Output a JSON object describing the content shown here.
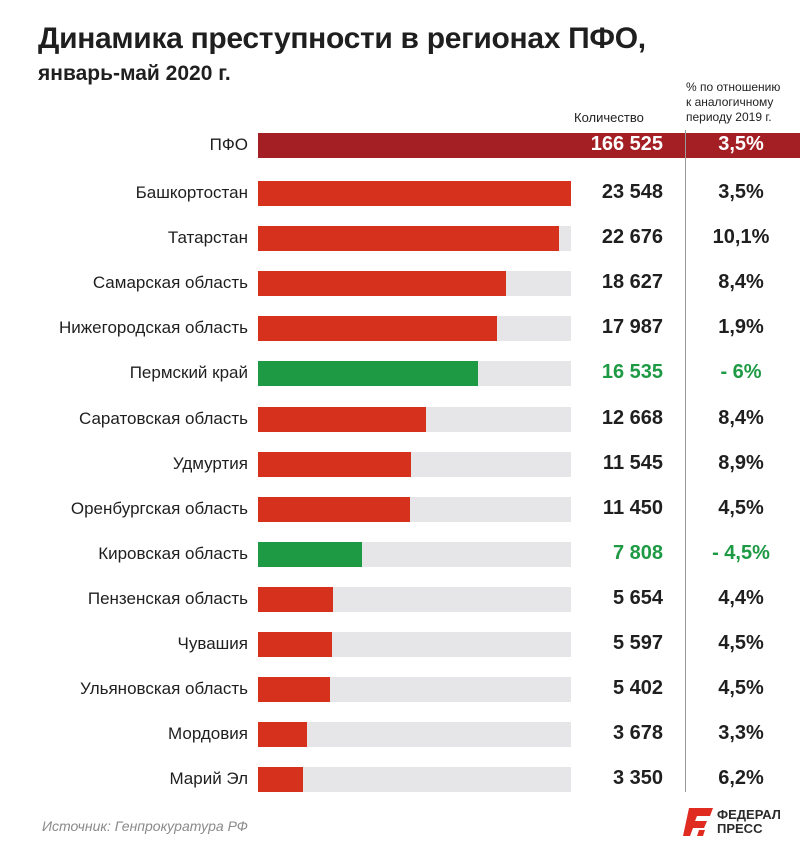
{
  "title": "Динамика преступности в регионах ПФО,",
  "subtitle": "январь-май 2020 г.",
  "headers": {
    "count": "Количество",
    "pct_line1": "% по отношению",
    "pct_line2": "к аналогичному",
    "pct_line3": "периоду 2019 г."
  },
  "total": {
    "label": "ПФО",
    "value": "166 525",
    "pct": "3,5%"
  },
  "source": "Источник: Генпрокуратура РФ",
  "logo": {
    "line1": "ФЕДЕРАЛ",
    "line2": "ПРЕСС"
  },
  "colors": {
    "increase": "#d5311d",
    "decrease": "#1e9a45",
    "total": "#a41f24",
    "track": "#e6e6e9"
  },
  "chart_data": {
    "type": "bar",
    "orientation": "horizontal",
    "xlim": [
      0,
      23548
    ],
    "categories": [
      "Башкортостан",
      "Татарстан",
      "Самарская область",
      "Нижегородская область",
      "Пермский край",
      "Саратовская область",
      "Удмуртия",
      "Оренбургская область",
      "Кировская область",
      "Пензенская область",
      "Чувашия",
      "Ульяновская область",
      "Мордовия",
      "Марий Эл"
    ],
    "values": [
      23548,
      22676,
      18627,
      17987,
      16535,
      12668,
      11545,
      11450,
      7808,
      5654,
      5597,
      5402,
      3678,
      3350
    ],
    "value_labels": [
      "23 548",
      "22 676",
      "18 627",
      "17 987",
      "16 535",
      "12 668",
      "11 545",
      "11 450",
      "7 808",
      "5 654",
      "5 597",
      "5 402",
      "3 678",
      "3 350"
    ],
    "pct_labels": [
      "3,5%",
      "10,1%",
      "8,4%",
      "1,9%",
      "- 6%",
      "8,4%",
      "8,9%",
      "4,5%",
      "- 4,5%",
      "4,4%",
      "4,5%",
      "4,5%",
      "3,3%",
      "6,2%"
    ],
    "pct_change": [
      3.5,
      10.1,
      8.4,
      1.9,
      -6,
      8.4,
      8.9,
      4.5,
      -4.5,
      4.4,
      4.5,
      4.5,
      3.3,
      6.2
    ]
  }
}
